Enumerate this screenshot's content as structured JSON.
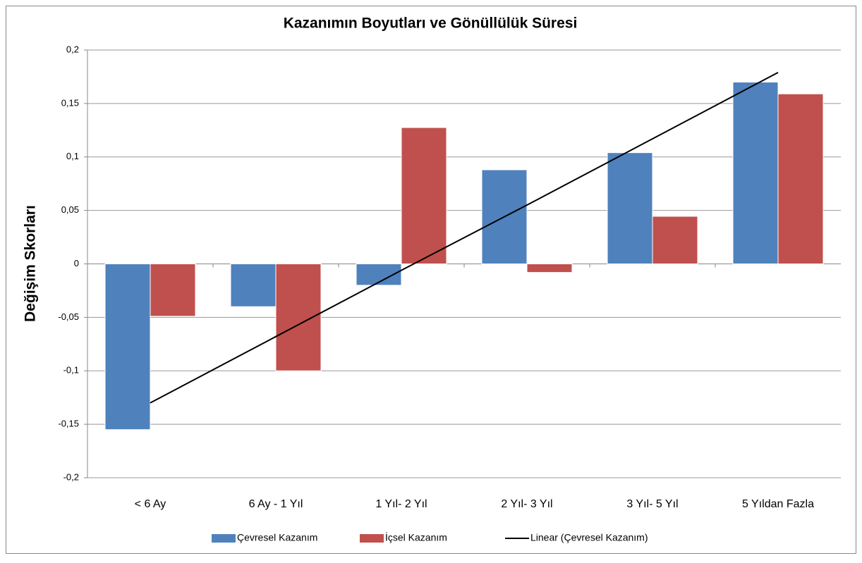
{
  "chart_data": {
    "type": "bar",
    "title": "Kazanımın Boyutları ve Gönüllülük Süresi",
    "y_label": "Değişim Skorları",
    "categories": [
      "< 6 Ay",
      "6 Ay - 1 Yıl",
      "1 Yıl- 2 Yıl",
      "2 Yıl- 3 Yıl",
      "3 Yıl- 5 Yıl",
      "5 Yıldan Fazla"
    ],
    "series": [
      {
        "name": "Çevresel Kazanım",
        "color": "#4f81bd",
        "values": [
          -0.155,
          -0.04,
          -0.02,
          0.088,
          0.104,
          0.17
        ]
      },
      {
        "name": "İçsel Kazanım",
        "color": "#c0504d",
        "values": [
          -0.049,
          -0.1,
          0.1275,
          -0.008,
          0.0445,
          0.159
        ]
      },
      {
        "name": "Linear (Çevresel Kazanım)",
        "type": "line",
        "color": "#000000",
        "values": [
          -0.13,
          -0.068,
          -0.006,
          0.055,
          0.117,
          0.179
        ]
      }
    ],
    "ylim": [
      -0.2,
      0.2
    ],
    "yticks": [
      {
        "value": -0.2,
        "label": "-0,2"
      },
      {
        "value": -0.15,
        "label": "-0,15"
      },
      {
        "value": -0.1,
        "label": "-0,1"
      },
      {
        "value": -0.05,
        "label": "-0,05"
      },
      0,
      {
        "value": 0.05,
        "label": "0,05"
      },
      {
        "value": 0.1,
        "label": "0,1"
      },
      {
        "value": 0.15,
        "label": "0,15"
      },
      {
        "value": 0.2,
        "label": "0,2"
      }
    ],
    "grid": true,
    "legend": "bottom"
  }
}
